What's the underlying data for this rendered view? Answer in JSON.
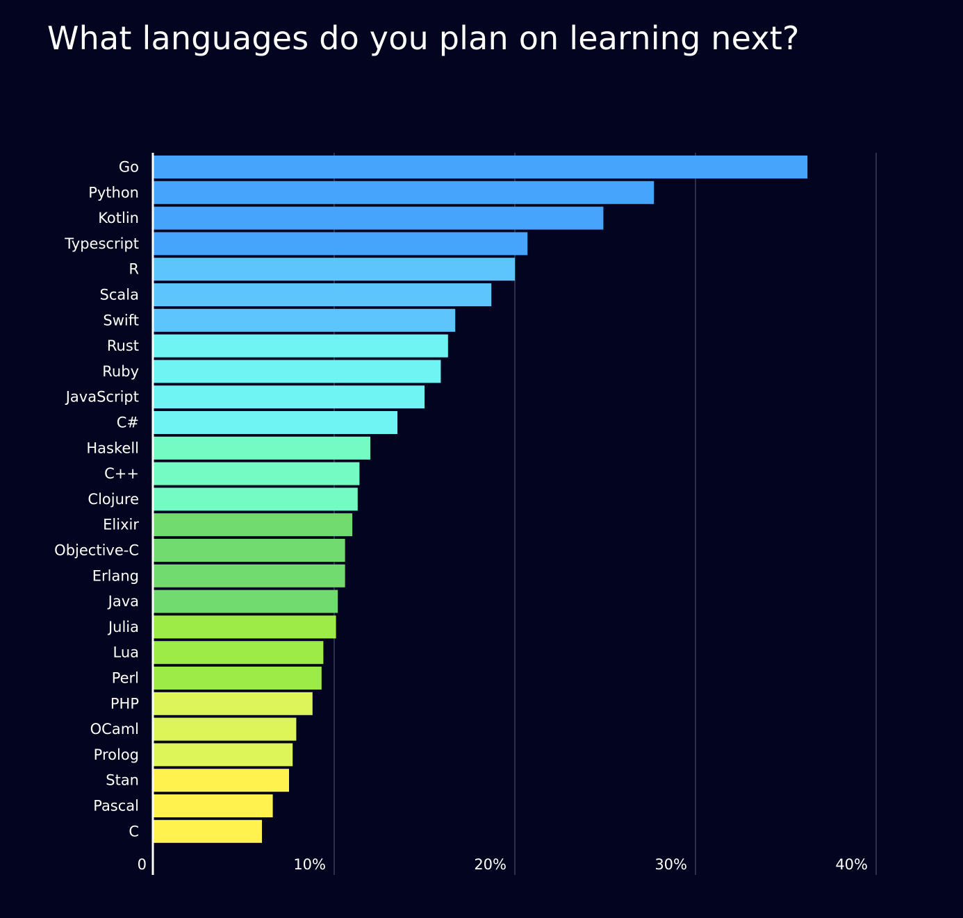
{
  "chart_data": {
    "type": "bar",
    "orientation": "horizontal",
    "title": "What languages do you plan on learning next?",
    "xlabel": "",
    "ylabel": "",
    "xlim": [
      0,
      40
    ],
    "x_ticks": [
      0,
      10,
      20,
      30,
      40
    ],
    "x_tick_labels": [
      "0",
      "10%",
      "20%",
      "30%",
      "40%"
    ],
    "grid": "vertical",
    "categories": [
      "Go",
      "Python",
      "Kotlin",
      "Typescript",
      "R",
      "Scala",
      "Swift",
      "Rust",
      "Ruby",
      "JavaScript",
      "C#",
      "Haskell",
      "C++",
      "Clojure",
      "Elixir",
      "Objective-C",
      "Erlang",
      "Java",
      "Julia",
      "Lua",
      "Perl",
      "PHP",
      "OCaml",
      "Prolog",
      "Stan",
      "Pascal",
      "C"
    ],
    "values": [
      36.2,
      27.7,
      24.9,
      20.7,
      20.0,
      18.7,
      16.7,
      16.3,
      15.9,
      15.0,
      13.5,
      12.0,
      11.4,
      11.3,
      11.0,
      10.6,
      10.6,
      10.2,
      10.1,
      9.4,
      9.3,
      8.8,
      7.9,
      7.7,
      7.5,
      6.6,
      6.0
    ],
    "colors": [
      "#47a4fc",
      "#47a4fc",
      "#47a4fc",
      "#47a4fc",
      "#5ec4fc",
      "#5ec4fc",
      "#5ec4fc",
      "#6ff3f3",
      "#6ff3f3",
      "#6ff3f3",
      "#6ff3f3",
      "#74fbc4",
      "#74fbc4",
      "#74fbc4",
      "#72db6f",
      "#72db6f",
      "#72db6f",
      "#72db6f",
      "#9deb47",
      "#9deb47",
      "#9deb47",
      "#def55a",
      "#def55a",
      "#def55a",
      "#fff24f",
      "#fff24f",
      "#fff24f"
    ],
    "background_color": "#03041f",
    "gridline_color": "#3d3e5a"
  }
}
